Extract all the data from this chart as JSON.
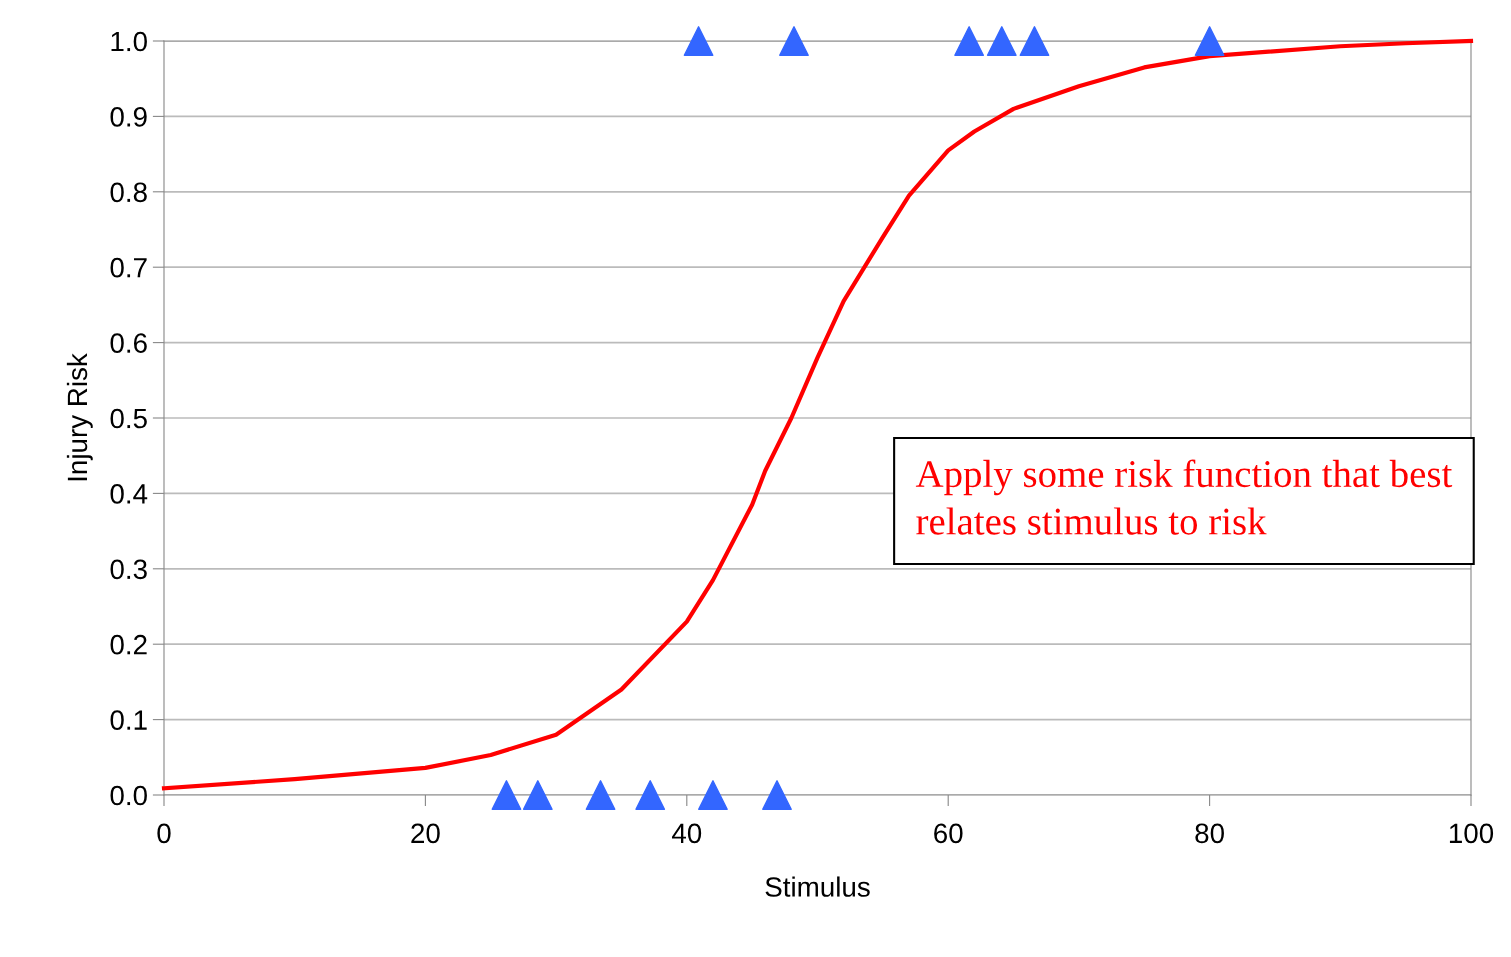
{
  "chart_data": {
    "type": "scatter",
    "xlabel": "Stimulus",
    "ylabel": "Injury Risk",
    "xlim": [
      0,
      100
    ],
    "xticks": [
      0,
      20,
      40,
      60,
      80,
      100
    ],
    "ylim": [
      0,
      1.0
    ],
    "yticks": [
      {
        "value": 0,
        "label": "0.0"
      },
      {
        "value": 0.1,
        "label": "0.1"
      },
      {
        "value": 0.2,
        "label": "0.2"
      },
      {
        "value": 0.3,
        "label": "0.3"
      },
      {
        "value": 0.4,
        "label": "0.4"
      },
      {
        "value": 0.5,
        "label": "0.5"
      },
      {
        "value": 0.6,
        "label": "0.6"
      },
      {
        "value": 0.7,
        "label": "0.7"
      },
      {
        "value": 0.8,
        "label": "0.8"
      },
      {
        "value": 0.9,
        "label": "0.9"
      },
      {
        "value": 1.0,
        "label": "1.0"
      }
    ],
    "grid": "y",
    "legend": false,
    "series": [
      {
        "type": "line",
        "color": "#ff0000",
        "marker": "none",
        "line_style": "solid",
        "x": [
          0,
          10,
          20,
          25,
          30,
          35,
          40,
          42,
          45,
          46,
          48,
          50,
          52,
          55,
          57,
          60,
          62,
          65,
          70,
          75,
          80,
          90,
          95,
          100
        ],
        "values": [
          0.009,
          0.021,
          0.036,
          0.053,
          0.08,
          0.14,
          0.23,
          0.285,
          0.385,
          0.43,
          0.5,
          0.58,
          0.655,
          0.74,
          0.795,
          0.855,
          0.88,
          0.91,
          0.94,
          0.965,
          0.98,
          0.993,
          0.997,
          1.0
        ]
      },
      {
        "color": "#3366ff",
        "marker": "triangle",
        "x": [
          26.2,
          28.6,
          33.4,
          37.2,
          42.0,
          46.9,
          40.9,
          48.2,
          61.6,
          64.1,
          66.6,
          80.0
        ],
        "values": [
          0,
          0,
          0,
          0,
          0,
          0,
          1,
          1,
          1,
          1,
          1,
          1
        ]
      }
    ],
    "annotations": [
      "Apply some risk function that best relates stimulus to risk"
    ]
  }
}
